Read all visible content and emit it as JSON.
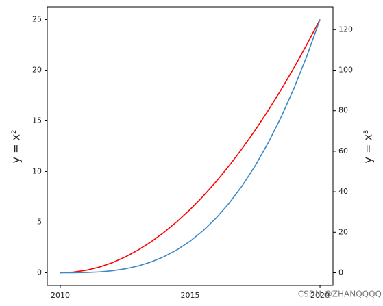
{
  "chart_data": {
    "type": "line",
    "ylabel": "y = x²",
    "y2label": "y = x³",
    "x": [
      2010,
      2010.5,
      2011,
      2011.5,
      2012,
      2012.5,
      2013,
      2013.5,
      2014,
      2014.5,
      2015,
      2015.5,
      2016,
      2016.5,
      2017,
      2017.5,
      2018,
      2018.5,
      2019,
      2019.5,
      2020
    ],
    "series": [
      {
        "color": "#ff0000",
        "values": [
          0,
          0.0625,
          0.25,
          0.5625,
          1,
          1.5625,
          2.25,
          3.0625,
          4,
          5.0625,
          6.25,
          7.5625,
          9,
          10.5625,
          12.25,
          14.0625,
          16,
          18.0625,
          20.25,
          22.5625,
          25
        ]
      },
      {
        "color": "#3a87c4",
        "axis": "y2",
        "values": [
          0,
          0.015625,
          0.125,
          0.421875,
          1,
          1.953125,
          3.375,
          5.359375,
          8,
          11.390625,
          15.625,
          20.796875,
          27,
          34.328125,
          42.875,
          52.734375,
          64,
          76.765625,
          91.125,
          107.171875,
          125
        ]
      }
    ],
    "xlim": [
      2009.5,
      2020.5
    ],
    "xticks": [
      2010,
      2015,
      2020
    ],
    "ylim": [
      -1.25,
      26.25
    ],
    "yticks": [
      0,
      5,
      10,
      15,
      20,
      25
    ],
    "y2lim": [
      -6.25,
      131.25
    ],
    "y2ticks": [
      0,
      20,
      40,
      60,
      80,
      100,
      120
    ],
    "watermark": "CSDN @ZHANQQQQ"
  }
}
